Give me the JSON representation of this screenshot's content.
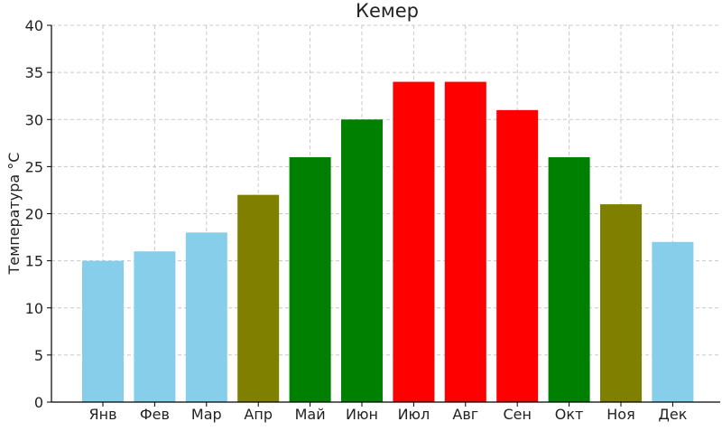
{
  "chart_data": {
    "type": "bar",
    "title": "Кемер",
    "xlabel": "",
    "ylabel": "Температура °C",
    "categories": [
      "Янв",
      "Фев",
      "Мар",
      "Апр",
      "Май",
      "Июн",
      "Июл",
      "Авг",
      "Сен",
      "Окт",
      "Ноя",
      "Дек"
    ],
    "values": [
      15,
      16,
      18,
      22,
      26,
      30,
      34,
      34,
      31,
      26,
      21,
      17
    ],
    "bar_colors": [
      "#87ceeb",
      "#87ceeb",
      "#87ceeb",
      "#808000",
      "#008000",
      "#008000",
      "#ff0000",
      "#ff0000",
      "#ff0000",
      "#008000",
      "#808000",
      "#87ceeb"
    ],
    "ylim": [
      0,
      40
    ],
    "yticks": [
      0,
      5,
      10,
      15,
      20,
      25,
      30,
      35,
      40
    ],
    "grid": true
  }
}
